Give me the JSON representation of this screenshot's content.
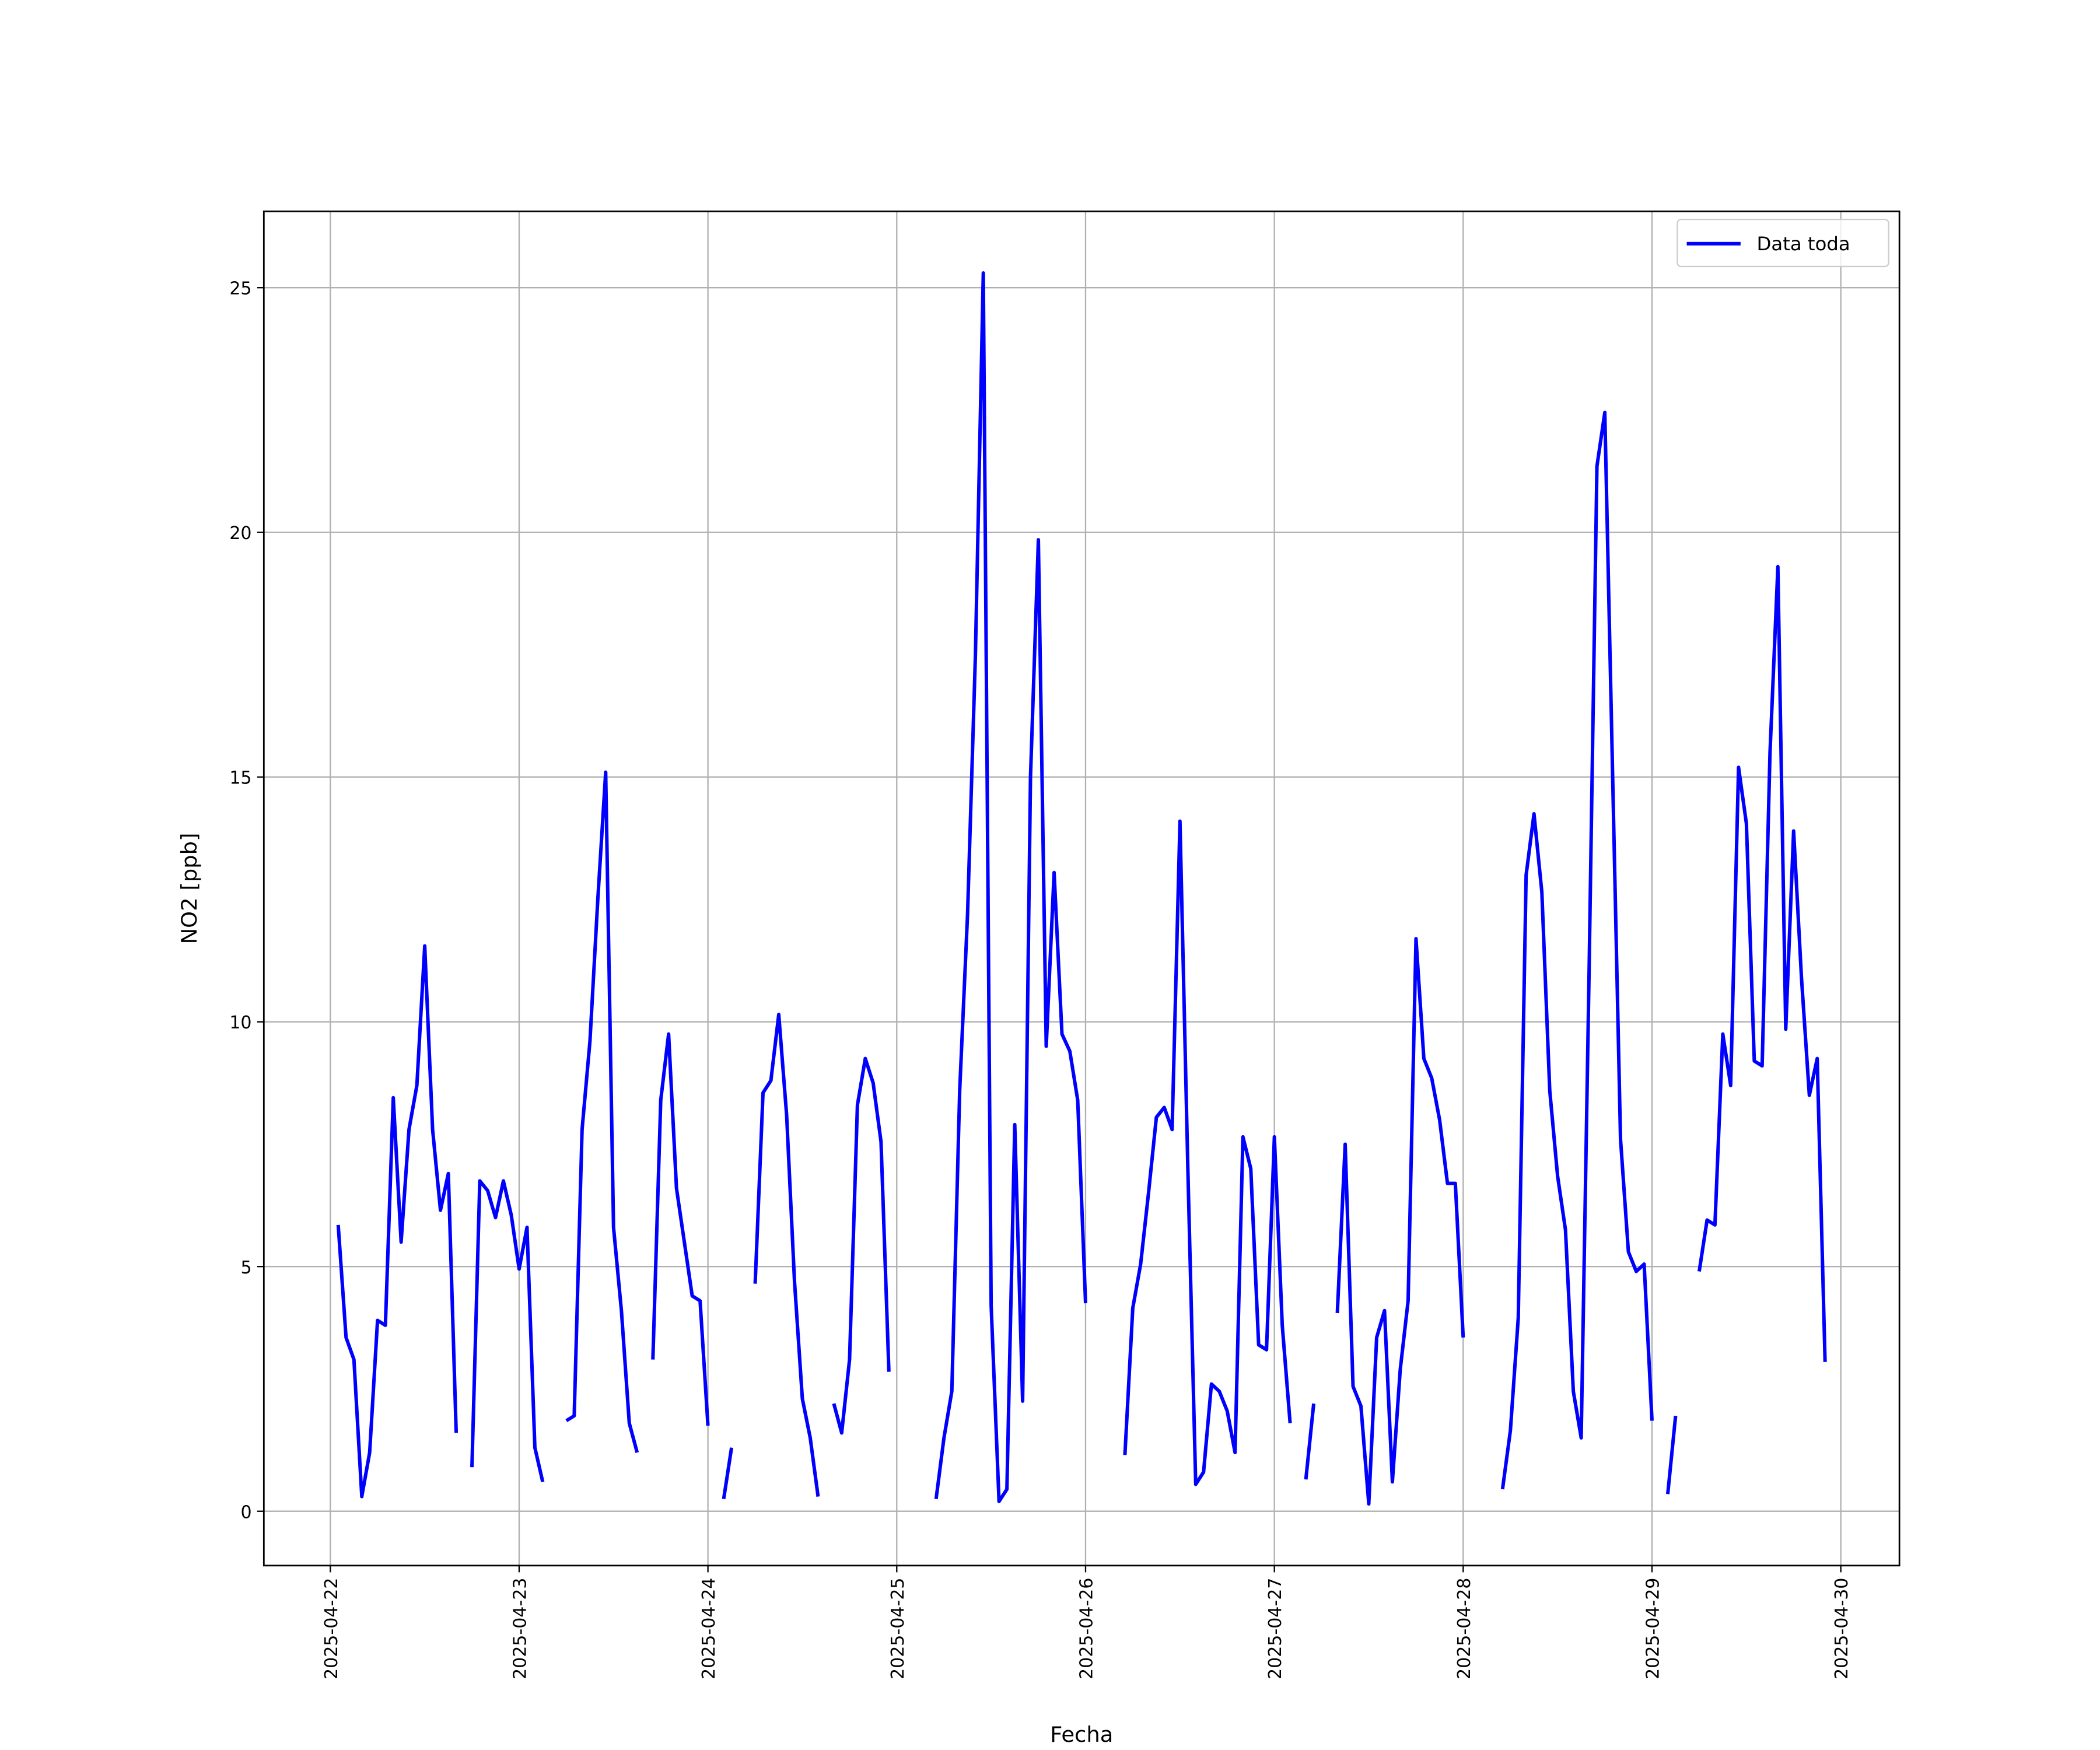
{
  "chart_data": {
    "type": "line",
    "xlabel": "Fecha",
    "ylabel": "NO2 [ppb]",
    "x": [
      "2025-04-22 01:00",
      "2025-04-22 02:00",
      "2025-04-22 03:00",
      "2025-04-22 04:00",
      "2025-04-22 05:00",
      "2025-04-22 06:00",
      "2025-04-22 07:00",
      "2025-04-22 08:00",
      "2025-04-22 09:00",
      "2025-04-22 10:00",
      "2025-04-22 11:00",
      "2025-04-22 12:00",
      "2025-04-22 13:00",
      "2025-04-22 14:00",
      "2025-04-22 15:00",
      "2025-04-22 16:00",
      "2025-04-22 17:00",
      "2025-04-22 18:00",
      "2025-04-22 19:00",
      "2025-04-22 20:00",
      "2025-04-22 21:00",
      "2025-04-22 22:00",
      "2025-04-22 23:00",
      "2025-04-23 00:00",
      "2025-04-23 01:00",
      "2025-04-23 02:00",
      "2025-04-23 03:00",
      "2025-04-23 04:00",
      "2025-04-23 05:00",
      "2025-04-23 06:00",
      "2025-04-23 07:00",
      "2025-04-23 08:00",
      "2025-04-23 09:00",
      "2025-04-23 10:00",
      "2025-04-23 11:00",
      "2025-04-23 12:00",
      "2025-04-23 13:00",
      "2025-04-23 14:00",
      "2025-04-23 15:00",
      "2025-04-23 16:00",
      "2025-04-23 17:00",
      "2025-04-23 18:00",
      "2025-04-23 19:00",
      "2025-04-23 20:00",
      "2025-04-23 21:00",
      "2025-04-23 22:00",
      "2025-04-23 23:00",
      "2025-04-24 00:00",
      "2025-04-24 01:00",
      "2025-04-24 02:00",
      "2025-04-24 03:00",
      "2025-04-24 04:00",
      "2025-04-24 05:00",
      "2025-04-24 06:00",
      "2025-04-24 07:00",
      "2025-04-24 08:00",
      "2025-04-24 09:00",
      "2025-04-24 10:00",
      "2025-04-24 11:00",
      "2025-04-24 12:00",
      "2025-04-24 13:00",
      "2025-04-24 14:00",
      "2025-04-24 15:00",
      "2025-04-24 16:00",
      "2025-04-24 17:00",
      "2025-04-24 18:00",
      "2025-04-24 19:00",
      "2025-04-24 20:00",
      "2025-04-24 21:00",
      "2025-04-24 22:00",
      "2025-04-24 23:00",
      "2025-04-25 00:00",
      "2025-04-25 01:00",
      "2025-04-25 02:00",
      "2025-04-25 03:00",
      "2025-04-25 04:00",
      "2025-04-25 05:00",
      "2025-04-25 06:00",
      "2025-04-25 07:00",
      "2025-04-25 08:00",
      "2025-04-25 09:00",
      "2025-04-25 10:00",
      "2025-04-25 11:00",
      "2025-04-25 12:00",
      "2025-04-25 13:00",
      "2025-04-25 14:00",
      "2025-04-25 15:00",
      "2025-04-25 16:00",
      "2025-04-25 17:00",
      "2025-04-25 18:00",
      "2025-04-25 19:00",
      "2025-04-25 20:00",
      "2025-04-25 21:00",
      "2025-04-25 22:00",
      "2025-04-25 23:00",
      "2025-04-26 00:00",
      "2025-04-26 01:00",
      "2025-04-26 02:00",
      "2025-04-26 03:00",
      "2025-04-26 04:00",
      "2025-04-26 05:00",
      "2025-04-26 06:00",
      "2025-04-26 07:00",
      "2025-04-26 08:00",
      "2025-04-26 09:00",
      "2025-04-26 10:00",
      "2025-04-26 11:00",
      "2025-04-26 12:00",
      "2025-04-26 13:00",
      "2025-04-26 14:00",
      "2025-04-26 15:00",
      "2025-04-26 16:00",
      "2025-04-26 17:00",
      "2025-04-26 18:00",
      "2025-04-26 19:00",
      "2025-04-26 20:00",
      "2025-04-26 21:00",
      "2025-04-26 22:00",
      "2025-04-26 23:00",
      "2025-04-27 00:00",
      "2025-04-27 01:00",
      "2025-04-27 02:00",
      "2025-04-27 03:00",
      "2025-04-27 04:00",
      "2025-04-27 05:00",
      "2025-04-27 06:00",
      "2025-04-27 07:00",
      "2025-04-27 08:00",
      "2025-04-27 09:00",
      "2025-04-27 10:00",
      "2025-04-27 11:00",
      "2025-04-27 12:00",
      "2025-04-27 13:00",
      "2025-04-27 14:00",
      "2025-04-27 15:00",
      "2025-04-27 16:00",
      "2025-04-27 17:00",
      "2025-04-27 18:00",
      "2025-04-27 19:00",
      "2025-04-27 20:00",
      "2025-04-27 21:00",
      "2025-04-27 22:00",
      "2025-04-27 23:00",
      "2025-04-28 00:00",
      "2025-04-28 01:00",
      "2025-04-28 02:00",
      "2025-04-28 03:00",
      "2025-04-28 04:00",
      "2025-04-28 05:00",
      "2025-04-28 06:00",
      "2025-04-28 07:00",
      "2025-04-28 08:00",
      "2025-04-28 09:00",
      "2025-04-28 10:00",
      "2025-04-28 11:00",
      "2025-04-28 12:00",
      "2025-04-28 13:00",
      "2025-04-28 14:00",
      "2025-04-28 15:00",
      "2025-04-28 16:00",
      "2025-04-28 17:00",
      "2025-04-28 18:00",
      "2025-04-28 19:00",
      "2025-04-28 20:00",
      "2025-04-28 21:00",
      "2025-04-28 22:00",
      "2025-04-28 23:00",
      "2025-04-29 00:00",
      "2025-04-29 01:00",
      "2025-04-29 02:00",
      "2025-04-29 03:00",
      "2025-04-29 04:00",
      "2025-04-29 05:00",
      "2025-04-29 06:00",
      "2025-04-29 07:00",
      "2025-04-29 08:00",
      "2025-04-29 09:00",
      "2025-04-29 10:00",
      "2025-04-29 11:00",
      "2025-04-29 12:00",
      "2025-04-29 13:00",
      "2025-04-29 14:00",
      "2025-04-29 15:00",
      "2025-04-29 16:00",
      "2025-04-29 17:00",
      "2025-04-29 18:00",
      "2025-04-29 19:00",
      "2025-04-29 20:00",
      "2025-04-29 21:00",
      "2025-04-29 22:00"
    ],
    "series": [
      {
        "name": "Data toda",
        "color": "#0000ff",
        "values": [
          5.85,
          3.55,
          3.1,
          0.3,
          1.2,
          3.9,
          3.8,
          8.45,
          5.5,
          7.8,
          8.7,
          11.55,
          7.8,
          6.15,
          6.9,
          1.6,
          null,
          0.9,
          6.75,
          6.55,
          6.0,
          6.75,
          6.05,
          4.95,
          5.8,
          1.3,
          0.6,
          null,
          null,
          1.85,
          1.95,
          7.8,
          9.6,
          12.5,
          15.1,
          5.8,
          4.1,
          1.8,
          1.2,
          null,
          3.1,
          8.4,
          9.75,
          6.6,
          5.5,
          4.4,
          4.3,
          1.75,
          null,
          0.25,
          1.3,
          null,
          null,
          4.65,
          8.55,
          8.8,
          10.15,
          8.1,
          4.7,
          2.3,
          1.5,
          0.3,
          null,
          2.2,
          1.6,
          3.1,
          8.3,
          9.25,
          8.75,
          7.55,
          2.85,
          null,
          null,
          null,
          null,
          null,
          0.25,
          1.5,
          2.45,
          8.6,
          12.2,
          17.5,
          25.3,
          4.2,
          0.2,
          0.45,
          7.9,
          2.25,
          15.0,
          19.85,
          9.5,
          13.05,
          9.75,
          9.4,
          8.4,
          4.25,
          null,
          null,
          null,
          null,
          1.15,
          4.15,
          5.05,
          6.5,
          8.05,
          8.25,
          7.8,
          14.1,
          7.0,
          0.55,
          0.8,
          2.6,
          2.45,
          2.05,
          1.2,
          7.65,
          7.0,
          3.4,
          3.3,
          7.65,
          3.8,
          1.8,
          null,
          0.65,
          2.2,
          null,
          null,
          4.05,
          7.5,
          2.55,
          2.15,
          0.15,
          3.55,
          4.1,
          0.6,
          2.9,
          4.3,
          11.7,
          9.25,
          8.85,
          8.0,
          6.7,
          6.7,
          3.55,
          null,
          null,
          null,
          null,
          0.45,
          1.65,
          3.95,
          13.0,
          14.25,
          12.65,
          8.6,
          6.85,
          5.75,
          2.45,
          1.5,
          11.0,
          21.35,
          22.45,
          15.0,
          7.6,
          5.3,
          4.9,
          5.05,
          1.85,
          null,
          0.35,
          1.95,
          null,
          null,
          4.9,
          5.95,
          5.85,
          9.75,
          8.7,
          15.2,
          14.05,
          9.2,
          9.1,
          15.5,
          19.3,
          9.85,
          13.9,
          10.9,
          8.5,
          9.25,
          3.05
        ]
      }
    ],
    "xlim": [
      "2025-04-21 15:33",
      "2025-04-30 07:27"
    ],
    "xticks": [
      "2025-04-22",
      "2025-04-23",
      "2025-04-24",
      "2025-04-25",
      "2025-04-26",
      "2025-04-27",
      "2025-04-28",
      "2025-04-29",
      "2025-04-30"
    ],
    "ylim": [
      -1.11,
      26.56
    ],
    "yticks": [
      0,
      5,
      10,
      15,
      20,
      25
    ],
    "grid": true,
    "legend": "upper right"
  }
}
